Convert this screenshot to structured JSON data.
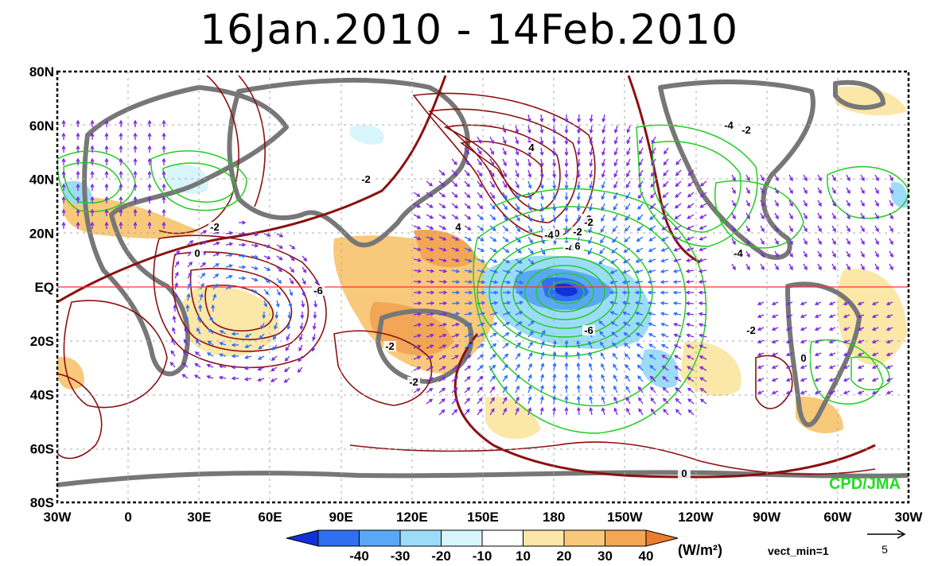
{
  "title": "16Jan.2010  -  14Feb.2010",
  "lat_labels": [
    "80N",
    "60N",
    "40N",
    "20N",
    "EQ",
    "20S",
    "40S",
    "60S",
    "80S"
  ],
  "lon_labels": [
    "30W",
    "0",
    "30E",
    "60E",
    "90E",
    "120E",
    "150E",
    "180",
    "150W",
    "120W",
    "90W",
    "60W",
    "30W"
  ],
  "colorbar": {
    "ticks": [
      "-40",
      "-30",
      "-20",
      "-10",
      "10",
      "20",
      "30",
      "40"
    ],
    "colors": [
      "#1030d8",
      "#2f6ff0",
      "#5aa8f5",
      "#9ddcf8",
      "#d8f5fb",
      "#ffffff",
      "#fbe7a8",
      "#f8c97a",
      "#f3a655",
      "#ec7d30"
    ],
    "unit": "(W/m²)"
  },
  "vector": {
    "label": "vect_min=1",
    "reference": "5"
  },
  "contour_labels": [
    "-2",
    "0",
    "-2",
    "4",
    "-4",
    "4",
    "-6",
    "-4",
    "-2",
    "0",
    "-4",
    "-2",
    "0",
    "-6",
    "-2",
    "-2",
    "0",
    "-6",
    "6",
    "-4",
    "-2",
    "-2"
  ],
  "credit": "CPD/JMA",
  "colors": {
    "positive_contour": "#8b1010",
    "negative_contour": "#22cc22",
    "vector_purple": "#7a28e0",
    "vector_blue": "#2a6cff",
    "land": "#777777",
    "equator": "#ff3030"
  },
  "icons": [
    "arrow-right-icon"
  ]
}
